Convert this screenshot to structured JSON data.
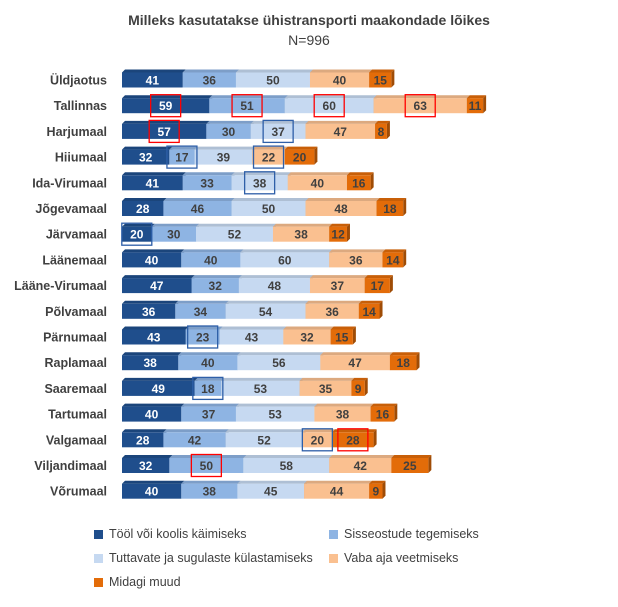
{
  "chart_data": {
    "type": "bar",
    "stacked": true,
    "orientation": "horizontal",
    "title": "Milleks kasutatakse ühistransporti maakondade lõikes",
    "subtitle": "N=996",
    "categories": [
      "Üldjaotus",
      "Tallinnas",
      "Harjumaal",
      "Hiiumaal",
      "Ida-Virumaal",
      "Jõgevamaal",
      "Järvamaal",
      "Läänemaal",
      "Lääne-Virumaal",
      "Põlvamaal",
      "Pärnumaal",
      "Raplamaal",
      "Saaremaal",
      "Tartumaal",
      "Valgamaal",
      "Viljandimaal",
      "Võrumaal"
    ],
    "series": [
      {
        "name": "Tööl või koolis käimiseks",
        "color": "#1f4e8c",
        "values": [
          41,
          59,
          57,
          32,
          41,
          28,
          20,
          40,
          47,
          36,
          43,
          38,
          49,
          40,
          28,
          32,
          40
        ]
      },
      {
        "name": "Sisseostude tegemiseks",
        "color": "#8eb4e3",
        "values": [
          36,
          51,
          30,
          17,
          33,
          46,
          30,
          40,
          32,
          34,
          23,
          40,
          18,
          37,
          42,
          50,
          38
        ]
      },
      {
        "name": "Tuttavate ja sugulaste külastamiseks",
        "color": "#c6d9f1",
        "values": [
          50,
          60,
          37,
          39,
          38,
          50,
          52,
          60,
          48,
          54,
          43,
          56,
          53,
          53,
          52,
          58,
          45
        ]
      },
      {
        "name": "Vaba aja veetmiseks",
        "color": "#fac090",
        "values": [
          40,
          63,
          47,
          22,
          40,
          48,
          38,
          36,
          37,
          36,
          32,
          47,
          35,
          38,
          20,
          42,
          44
        ]
      },
      {
        "name": "Midagi muud",
        "color": "#e36c09",
        "values": [
          15,
          11,
          8,
          20,
          16,
          18,
          12,
          14,
          17,
          14,
          15,
          18,
          9,
          16,
          28,
          25,
          9
        ]
      }
    ],
    "highlights": [
      {
        "category": "Tallinnas",
        "series": 0,
        "color": "red"
      },
      {
        "category": "Tallinnas",
        "series": 1,
        "color": "red"
      },
      {
        "category": "Tallinnas",
        "series": 2,
        "color": "red"
      },
      {
        "category": "Tallinnas",
        "series": 3,
        "color": "red"
      },
      {
        "category": "Harjumaal",
        "series": 0,
        "color": "red"
      },
      {
        "category": "Harjumaal",
        "series": 2,
        "color": "blue"
      },
      {
        "category": "Hiiumaal",
        "series": 1,
        "color": "blue"
      },
      {
        "category": "Hiiumaal",
        "series": 3,
        "color": "blue"
      },
      {
        "category": "Ida-Virumaal",
        "series": 2,
        "color": "blue"
      },
      {
        "category": "Järvamaal",
        "series": 0,
        "color": "blue"
      },
      {
        "category": "Pärnumaal",
        "series": 1,
        "color": "blue"
      },
      {
        "category": "Saaremaal",
        "series": 1,
        "color": "blue"
      },
      {
        "category": "Valgamaal",
        "series": 3,
        "color": "blue"
      },
      {
        "category": "Valgamaal",
        "series": 4,
        "color": "red"
      },
      {
        "category": "Viljandimaal",
        "series": 1,
        "color": "red"
      }
    ],
    "legend_position": "bottom",
    "grid": false
  },
  "colors": {
    "highlight_red": "#ff0000",
    "highlight_blue": "#2e5fa8",
    "category_text": "#404040"
  }
}
